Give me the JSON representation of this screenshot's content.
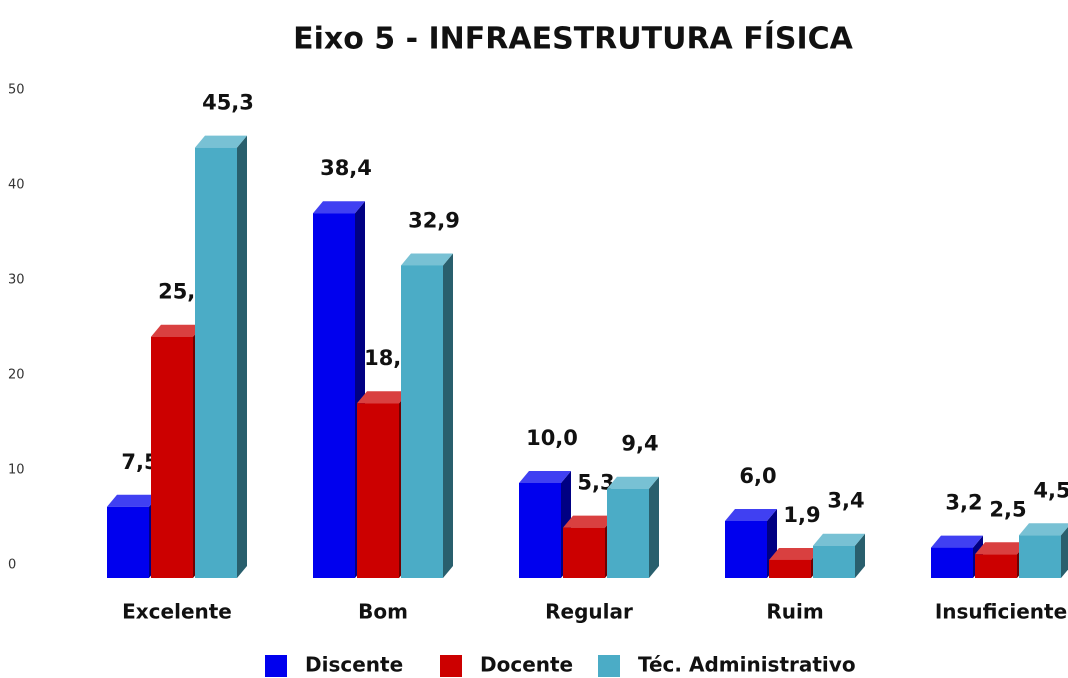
{
  "chart_data": {
    "type": "bar3d",
    "title": "Eixo 5 - INFRAESTRUTURA FÍSICA",
    "categories": [
      "Excelente",
      "Bom",
      "Regular",
      "Ruim",
      "Insuficiente"
    ],
    "series": [
      {
        "name": "Discente",
        "color": "#0000ee",
        "values": [
          7.5,
          38.4,
          10.0,
          6.0,
          3.2
        ],
        "value_labels": [
          "7,5",
          "38,4",
          "10,0",
          "6,0",
          "3,2"
        ]
      },
      {
        "name": "Docente",
        "color": "#cc0000",
        "values": [
          25.4,
          18.4,
          5.3,
          1.9,
          2.5
        ],
        "value_labels": [
          "25,4",
          "18,4",
          "5,3",
          "1,9",
          "2,5"
        ]
      },
      {
        "name": "Téc. Administrativo",
        "color": "#4bacc6",
        "values": [
          45.3,
          32.9,
          9.4,
          3.4,
          4.5
        ],
        "value_labels": [
          "45,3",
          "32,9",
          "9,4",
          "3,4",
          "4,5"
        ]
      }
    ],
    "ylim": [
      0,
      50
    ],
    "yticks": [
      0,
      10,
      20,
      30,
      40,
      50
    ],
    "grid": false,
    "legend": "bottom"
  }
}
